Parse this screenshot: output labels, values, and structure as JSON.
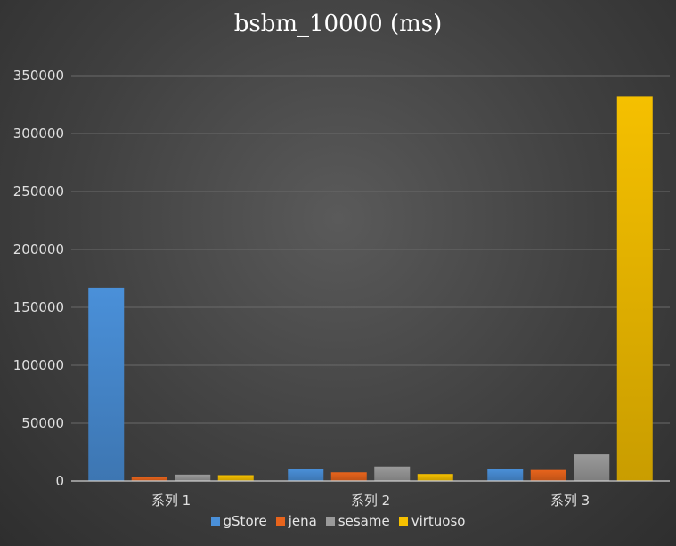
{
  "chart_data": {
    "type": "bar",
    "title": "bsbm_10000 (ms)",
    "xlabel": "",
    "ylabel": "",
    "categories": [
      "系列 1",
      "系列 2",
      "系列 3"
    ],
    "series": [
      {
        "name": "gStore",
        "values": [
          167000,
          10500,
          10500
        ],
        "color": "#4a90d9"
      },
      {
        "name": "jena",
        "values": [
          3500,
          7500,
          9500
        ],
        "color": "#e8641c"
      },
      {
        "name": "sesame",
        "values": [
          5500,
          12500,
          23000
        ],
        "color": "#9a9a9a"
      },
      {
        "name": "virtuoso",
        "values": [
          5000,
          6000,
          332000
        ],
        "color": "#f5c000"
      }
    ],
    "ylim": [
      0,
      350000
    ],
    "yticks": [
      0,
      50000,
      100000,
      150000,
      200000,
      250000,
      300000,
      350000
    ],
    "grid": true,
    "legend_position": "bottom"
  }
}
